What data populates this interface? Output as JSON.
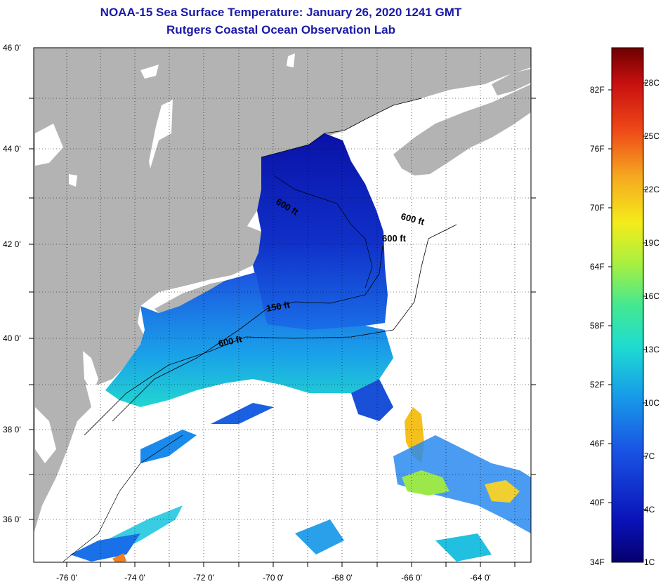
{
  "title": "NOAA-15 Sea Surface Temperature:  January 26, 2020 1241 GMT",
  "subtitle": "Rutgers Coastal Ocean Observation Lab",
  "latitude_labels": [
    "46 0'",
    "44 0'",
    "42 0'",
    "40 0'",
    "38 0'",
    "36 0'"
  ],
  "longitude_labels": [
    "-76 0'",
    "-74 0'",
    "-72 0'",
    "-70 0'",
    "-68 0'",
    "-66 0'",
    "-64 0'"
  ],
  "contour_labels": [
    "600 ft",
    "600 ft",
    "600 ft",
    "150 ft",
    "600 ft"
  ],
  "colorbar": {
    "fahrenheit_labels": [
      "82F",
      "76F",
      "70F",
      "64F",
      "58F",
      "52F",
      "46F",
      "40F",
      "34F"
    ],
    "celsius_labels": [
      "28C",
      "25C",
      "22C",
      "19C",
      "16C",
      "13C",
      "10C",
      "7C",
      "4C",
      "1C"
    ]
  },
  "colors": {
    "title": "#1a1aa8",
    "land": "#b3b3b3",
    "no_data": "#ffffff",
    "cold": "#0a0f9a",
    "warm": "#7a0000"
  }
}
